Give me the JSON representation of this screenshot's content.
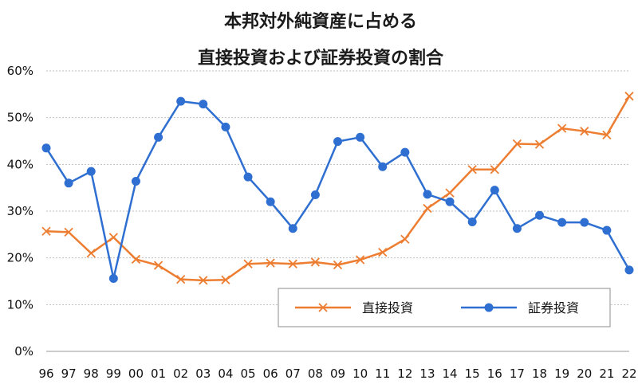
{
  "chart_data": {
    "type": "line",
    "title": [
      "本邦対外純資産に占める",
      "直接投資および証券投資の割合"
    ],
    "x": [
      "96",
      "97",
      "98",
      "99",
      "00",
      "01",
      "02",
      "03",
      "04",
      "05",
      "06",
      "07",
      "08",
      "09",
      "10",
      "11",
      "12",
      "13",
      "14",
      "15",
      "16",
      "17",
      "18",
      "19",
      "20",
      "21",
      "22"
    ],
    "ylim": [
      0,
      60
    ],
    "yticks": [
      "0%",
      "10%",
      "20%",
      "30%",
      "40%",
      "50%",
      "60%"
    ],
    "grid": true,
    "legend_position": "bottom-right",
    "series": [
      {
        "name": "直接投資",
        "color": "#ED7D31",
        "marker": "x",
        "values": [
          25.7,
          25.5,
          21.0,
          24.4,
          19.7,
          18.4,
          15.4,
          15.2,
          15.3,
          18.7,
          18.9,
          18.7,
          19.1,
          18.5,
          19.6,
          21.2,
          24.0,
          30.6,
          33.9,
          38.9,
          38.9,
          44.4,
          44.3,
          47.7,
          47.1,
          46.3,
          54.6
        ]
      },
      {
        "name": "証券投資",
        "color": "#2E6FD1",
        "marker": "circle",
        "values": [
          43.5,
          36.0,
          38.5,
          15.6,
          36.4,
          45.8,
          53.5,
          52.9,
          48.0,
          37.3,
          32.0,
          26.3,
          33.5,
          44.9,
          45.8,
          39.5,
          42.6,
          33.6,
          32.0,
          27.7,
          34.5,
          26.3,
          29.1,
          27.6,
          27.6,
          25.9,
          17.4
        ]
      }
    ]
  }
}
